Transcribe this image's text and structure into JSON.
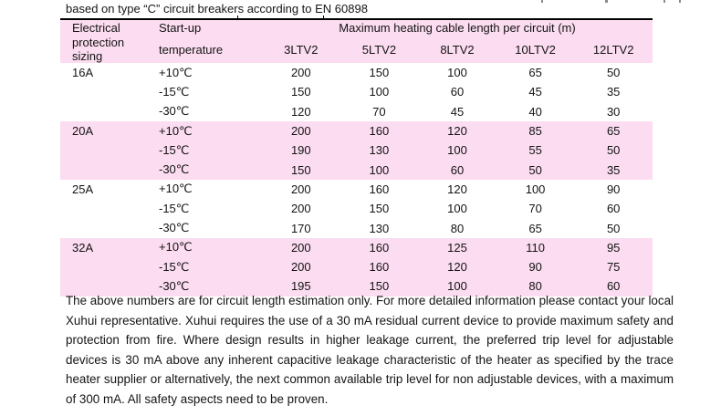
{
  "intro_line": "based on type “C” circuit breakers according to EN 60898",
  "table": {
    "header": {
      "col1_line1": "Electrical",
      "col1_line2": "protection sizing",
      "col2_line1": "Start-up",
      "col2_line2": "temperature",
      "span_header": "Maximum heating cable length per circuit (m)",
      "product_columns": [
        "3LTV2",
        "5LTV2",
        "8LTV2",
        "10LTV2",
        "12LTV2"
      ]
    },
    "groups": [
      {
        "sizing": "16A",
        "shaded": false,
        "rows": [
          {
            "temperature": "+10℃",
            "values": [
              "200",
              "150",
              "100",
              "65",
              "50"
            ]
          },
          {
            "temperature": "-15℃",
            "values": [
              "150",
              "100",
              "60",
              "45",
              "35"
            ]
          },
          {
            "temperature": "-30℃",
            "values": [
              "120",
              "70",
              "45",
              "40",
              "30"
            ]
          }
        ]
      },
      {
        "sizing": "20A",
        "shaded": true,
        "rows": [
          {
            "temperature": "+10℃",
            "values": [
              "200",
              "160",
              "120",
              "85",
              "65"
            ]
          },
          {
            "temperature": "-15℃",
            "values": [
              "190",
              "130",
              "100",
              "55",
              "50"
            ]
          },
          {
            "temperature": "-30℃",
            "values": [
              "150",
              "100",
              "60",
              "50",
              "35"
            ]
          }
        ]
      },
      {
        "sizing": "25A",
        "shaded": false,
        "rows": [
          {
            "temperature": "+10℃",
            "values": [
              "200",
              "160",
              "120",
              "100",
              "90"
            ]
          },
          {
            "temperature": "-15℃",
            "values": [
              "200",
              "150",
              "100",
              "70",
              "60"
            ]
          },
          {
            "temperature": "-30℃",
            "values": [
              "170",
              "130",
              "80",
              "65",
              "50"
            ]
          }
        ]
      },
      {
        "sizing": "32A",
        "shaded": true,
        "rows": [
          {
            "temperature": "+10℃",
            "values": [
              "200",
              "160",
              "125",
              "110",
              "95"
            ]
          },
          {
            "temperature": "-15℃",
            "values": [
              "200",
              "160",
              "120",
              "90",
              "75"
            ]
          },
          {
            "temperature": "-30℃",
            "values": [
              "195",
              "150",
              "100",
              "80",
              "60"
            ]
          }
        ]
      }
    ],
    "colors": {
      "row_shading": "#fbdcf0",
      "border": "#000000"
    }
  },
  "footer_paragraph": "The above numbers are for circuit length estimation only. For more detailed information please contact your local Xuhui representative. Xuhui requires the use of a 30 mA residual current device to provide maximum safety and protection from fire. Where design results in higher leakage current, the preferred trip level for adjustable devices is 30 mA above any inherent capacitive leakage characteristic of the heater as specified by the trace heater supplier or alternatively, the next common available trip level for non adjustable devices, with a maximum of 300 mA. All safety aspects need to be proven."
}
